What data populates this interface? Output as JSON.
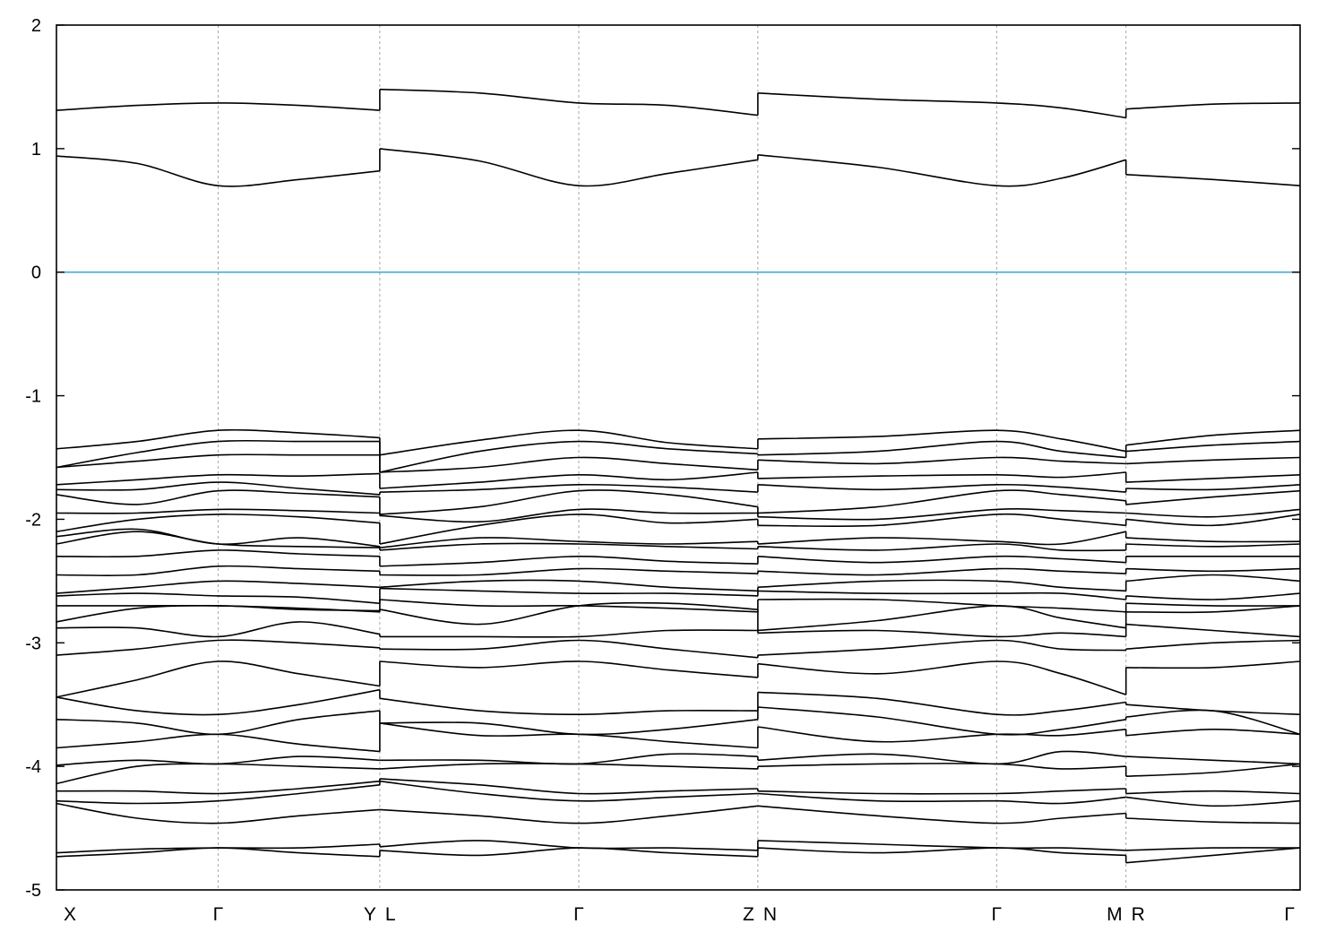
{
  "chart_data": {
    "type": "line",
    "title": "",
    "xlabel": "",
    "ylabel": "",
    "ylim": [
      -5,
      2
    ],
    "yticks": [
      2,
      1,
      0,
      -1,
      -2,
      -3,
      -4,
      -5
    ],
    "ytick_labels": [
      "2",
      "1",
      "0",
      "-1",
      "-2",
      "-3",
      "-4",
      "-5"
    ],
    "xlim": [
      0,
      100
    ],
    "high_symmetry_points": [
      {
        "label": "X",
        "x": 0
      },
      {
        "label": "Γ",
        "x": 13
      },
      {
        "label": "Y",
        "x": 26
      },
      {
        "label": "L",
        "x": 26
      },
      {
        "label": "Γ",
        "x": 42
      },
      {
        "label": "Z",
        "x": 56.4
      },
      {
        "label": "N",
        "x": 56.4
      },
      {
        "label": "Γ",
        "x": 75.6
      },
      {
        "label": "M",
        "x": 86
      },
      {
        "label": "R",
        "x": 86
      },
      {
        "label": "Γ",
        "x": 100
      }
    ],
    "vertical_grid_x": [
      13,
      26,
      42,
      56.4,
      75.6,
      86
    ],
    "fermi_level": 0,
    "grid": "vertical dashed at high-symmetry points",
    "colors": {
      "bands": "#000000",
      "fermi_line": "#44aacc",
      "grid": "#a8a8a8"
    },
    "segments": [
      {
        "path": "X-Γ-Y",
        "x": [
          0,
          6.5,
          13,
          19.5,
          26
        ],
        "bands": [
          [
            1.31,
            1.35,
            1.37,
            1.35,
            1.31
          ],
          [
            0.94,
            0.88,
            0.7,
            0.75,
            0.82
          ],
          [
            -1.43,
            -1.37,
            -1.28,
            -1.3,
            -1.34
          ],
          [
            -1.58,
            -1.46,
            -1.37,
            -1.37,
            -1.37
          ],
          [
            -1.58,
            -1.53,
            -1.48,
            -1.48,
            -1.48
          ],
          [
            -1.72,
            -1.68,
            -1.64,
            -1.65,
            -1.63
          ],
          [
            -1.76,
            -1.76,
            -1.7,
            -1.75,
            -1.8
          ],
          [
            -1.8,
            -1.88,
            -1.77,
            -1.79,
            -1.82
          ],
          [
            -1.95,
            -1.95,
            -1.92,
            -1.93,
            -1.95
          ],
          [
            -2.1,
            -2.0,
            -1.96,
            -1.98,
            -2.03
          ],
          [
            -2.14,
            -2.08,
            -2.2,
            -2.15,
            -2.22
          ],
          [
            -2.2,
            -2.1,
            -2.2,
            -2.22,
            -2.23
          ],
          [
            -2.3,
            -2.3,
            -2.25,
            -2.28,
            -2.3
          ],
          [
            -2.45,
            -2.45,
            -2.38,
            -2.4,
            -2.42
          ],
          [
            -2.6,
            -2.55,
            -2.5,
            -2.52,
            -2.55
          ],
          [
            -2.62,
            -2.6,
            -2.62,
            -2.63,
            -2.68
          ],
          [
            -2.7,
            -2.7,
            -2.7,
            -2.72,
            -2.75
          ],
          [
            -2.83,
            -2.72,
            -2.7,
            -2.73,
            -2.74
          ],
          [
            -2.88,
            -2.88,
            -2.95,
            -2.83,
            -2.93
          ],
          [
            -3.1,
            -3.05,
            -2.98,
            -3.0,
            -3.04
          ],
          [
            -3.44,
            -3.3,
            -3.15,
            -3.25,
            -3.35
          ],
          [
            -3.44,
            -3.55,
            -3.58,
            -3.5,
            -3.38
          ],
          [
            -3.62,
            -3.65,
            -3.74,
            -3.62,
            -3.55
          ],
          [
            -3.85,
            -3.8,
            -3.74,
            -3.82,
            -3.88
          ],
          [
            -3.99,
            -3.95,
            -3.98,
            -3.92,
            -3.95
          ],
          [
            -4.14,
            -4.0,
            -3.98,
            -4.0,
            -4.02
          ],
          [
            -4.2,
            -4.2,
            -4.22,
            -4.18,
            -4.12
          ],
          [
            -4.28,
            -4.3,
            -4.28,
            -4.22,
            -4.15
          ],
          [
            -4.3,
            -4.42,
            -4.46,
            -4.4,
            -4.35
          ],
          [
            -4.7,
            -4.67,
            -4.66,
            -4.66,
            -4.63
          ],
          [
            -4.73,
            -4.7,
            -4.66,
            -4.7,
            -4.73
          ]
        ]
      },
      {
        "path": "L-Γ-Z",
        "x": [
          26,
          34,
          42,
          49.2,
          56.4
        ],
        "bands": [
          [
            1.48,
            1.45,
            1.37,
            1.35,
            1.27
          ],
          [
            1.0,
            0.9,
            0.7,
            0.8,
            0.91
          ],
          [
            -1.48,
            -1.36,
            -1.28,
            -1.38,
            -1.43
          ],
          [
            -1.62,
            -1.45,
            -1.37,
            -1.43,
            -1.47
          ],
          [
            -1.62,
            -1.58,
            -1.5,
            -1.55,
            -1.6
          ],
          [
            -1.75,
            -1.7,
            -1.64,
            -1.68,
            -1.62
          ],
          [
            -1.78,
            -1.76,
            -1.72,
            -1.74,
            -1.78
          ],
          [
            -1.96,
            -1.9,
            -1.77,
            -1.8,
            -1.9
          ],
          [
            -1.97,
            -2.02,
            -1.92,
            -1.95,
            -1.95
          ],
          [
            -2.2,
            -2.05,
            -1.96,
            -2.03,
            -2.0
          ],
          [
            -2.23,
            -2.15,
            -2.18,
            -2.2,
            -2.18
          ],
          [
            -2.25,
            -2.2,
            -2.2,
            -2.22,
            -2.24
          ],
          [
            -2.38,
            -2.35,
            -2.3,
            -2.34,
            -2.36
          ],
          [
            -2.45,
            -2.45,
            -2.4,
            -2.42,
            -2.44
          ],
          [
            -2.55,
            -2.5,
            -2.5,
            -2.55,
            -2.58
          ],
          [
            -2.56,
            -2.58,
            -2.6,
            -2.6,
            -2.62
          ],
          [
            -2.65,
            -2.7,
            -2.7,
            -2.72,
            -2.75
          ],
          [
            -2.73,
            -2.85,
            -2.7,
            -2.68,
            -2.73
          ],
          [
            -2.95,
            -2.95,
            -2.95,
            -2.9,
            -2.9
          ],
          [
            -3.05,
            -3.05,
            -2.98,
            -3.05,
            -3.12
          ],
          [
            -3.15,
            -3.2,
            -3.15,
            -3.22,
            -3.28
          ],
          [
            -3.45,
            -3.55,
            -3.58,
            -3.55,
            -3.55
          ],
          [
            -3.65,
            -3.65,
            -3.74,
            -3.7,
            -3.62
          ],
          [
            -3.65,
            -3.75,
            -3.74,
            -3.8,
            -3.85
          ],
          [
            -3.95,
            -3.95,
            -3.98,
            -3.9,
            -3.92
          ],
          [
            -4.02,
            -3.98,
            -3.98,
            -4.0,
            -4.02
          ],
          [
            -4.1,
            -4.15,
            -4.22,
            -4.2,
            -4.18
          ],
          [
            -4.12,
            -4.22,
            -4.28,
            -4.25,
            -4.22
          ],
          [
            -4.35,
            -4.4,
            -4.46,
            -4.4,
            -4.32
          ],
          [
            -4.65,
            -4.6,
            -4.66,
            -4.66,
            -4.68
          ],
          [
            -4.68,
            -4.72,
            -4.66,
            -4.7,
            -4.73
          ]
        ]
      },
      {
        "path": "N-Γ-M",
        "x": [
          56.4,
          66,
          75.6,
          80.8,
          86
        ],
        "bands": [
          [
            1.45,
            1.4,
            1.37,
            1.33,
            1.25
          ],
          [
            0.95,
            0.85,
            0.7,
            0.76,
            0.91
          ],
          [
            -1.35,
            -1.33,
            -1.28,
            -1.35,
            -1.45
          ],
          [
            -1.48,
            -1.45,
            -1.37,
            -1.45,
            -1.5
          ],
          [
            -1.52,
            -1.55,
            -1.5,
            -1.53,
            -1.55
          ],
          [
            -1.67,
            -1.65,
            -1.64,
            -1.66,
            -1.62
          ],
          [
            -1.72,
            -1.76,
            -1.72,
            -1.74,
            -1.78
          ],
          [
            -1.95,
            -1.9,
            -1.77,
            -1.8,
            -1.85
          ],
          [
            -1.98,
            -2.0,
            -1.92,
            -1.93,
            -1.95
          ],
          [
            -2.05,
            -2.05,
            -1.96,
            -2.0,
            -2.05
          ],
          [
            -2.2,
            -2.15,
            -2.18,
            -2.2,
            -2.1
          ],
          [
            -2.22,
            -2.25,
            -2.2,
            -2.25,
            -2.25
          ],
          [
            -2.3,
            -2.35,
            -2.3,
            -2.32,
            -2.35
          ],
          [
            -2.42,
            -2.45,
            -2.4,
            -2.42,
            -2.44
          ],
          [
            -2.55,
            -2.5,
            -2.5,
            -2.55,
            -2.58
          ],
          [
            -2.58,
            -2.6,
            -2.6,
            -2.6,
            -2.65
          ],
          [
            -2.65,
            -2.65,
            -2.7,
            -2.72,
            -2.75
          ],
          [
            -2.9,
            -2.82,
            -2.7,
            -2.8,
            -2.88
          ],
          [
            -2.92,
            -2.9,
            -2.95,
            -2.92,
            -2.95
          ],
          [
            -3.1,
            -3.05,
            -2.98,
            -3.05,
            -3.06
          ],
          [
            -3.17,
            -3.25,
            -3.15,
            -3.25,
            -3.42
          ],
          [
            -3.4,
            -3.45,
            -3.58,
            -3.55,
            -3.48
          ],
          [
            -3.52,
            -3.6,
            -3.74,
            -3.7,
            -3.62
          ],
          [
            -3.68,
            -3.8,
            -3.74,
            -3.75,
            -3.7
          ],
          [
            -3.95,
            -3.9,
            -3.98,
            -3.88,
            -3.92
          ],
          [
            -4.0,
            -3.98,
            -3.98,
            -4.02,
            -4.0
          ],
          [
            -4.2,
            -4.22,
            -4.22,
            -4.2,
            -4.18
          ],
          [
            -4.22,
            -4.28,
            -4.28,
            -4.3,
            -4.25
          ],
          [
            -4.32,
            -4.4,
            -4.46,
            -4.42,
            -4.38
          ],
          [
            -4.6,
            -4.63,
            -4.66,
            -4.66,
            -4.68
          ],
          [
            -4.66,
            -4.7,
            -4.66,
            -4.7,
            -4.72
          ]
        ]
      },
      {
        "path": "R-Γ",
        "x": [
          86,
          93,
          100
        ],
        "bands": [
          [
            1.32,
            1.36,
            1.37
          ],
          [
            0.79,
            0.75,
            0.7
          ],
          [
            -1.4,
            -1.32,
            -1.28
          ],
          [
            -1.45,
            -1.4,
            -1.37
          ],
          [
            -1.55,
            -1.52,
            -1.5
          ],
          [
            -1.7,
            -1.67,
            -1.64
          ],
          [
            -1.75,
            -1.76,
            -1.72
          ],
          [
            -1.88,
            -1.82,
            -1.77
          ],
          [
            -1.95,
            -1.98,
            -1.92
          ],
          [
            -2.0,
            -2.05,
            -1.96
          ],
          [
            -2.15,
            -2.18,
            -2.18
          ],
          [
            -2.2,
            -2.22,
            -2.2
          ],
          [
            -2.3,
            -2.3,
            -2.3
          ],
          [
            -2.4,
            -2.42,
            -2.4
          ],
          [
            -2.5,
            -2.45,
            -2.5
          ],
          [
            -2.62,
            -2.65,
            -2.6
          ],
          [
            -2.68,
            -2.7,
            -2.7
          ],
          [
            -2.75,
            -2.75,
            -2.7
          ],
          [
            -2.85,
            -2.9,
            -2.95
          ],
          [
            -3.05,
            -3.0,
            -2.98
          ],
          [
            -3.2,
            -3.2,
            -3.15
          ],
          [
            -3.5,
            -3.55,
            -3.58
          ],
          [
            -3.6,
            -3.55,
            -3.74
          ],
          [
            -3.75,
            -3.7,
            -3.74
          ],
          [
            -3.92,
            -3.95,
            -3.98
          ],
          [
            -4.08,
            -4.05,
            -3.98
          ],
          [
            -4.22,
            -4.2,
            -4.22
          ],
          [
            -4.25,
            -4.32,
            -4.28
          ],
          [
            -4.42,
            -4.45,
            -4.46
          ],
          [
            -4.68,
            -4.66,
            -4.66
          ],
          [
            -4.78,
            -4.72,
            -4.66
          ]
        ]
      }
    ]
  }
}
